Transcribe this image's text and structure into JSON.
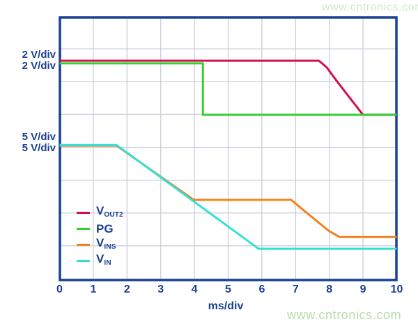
{
  "page": {
    "watermark_top": "www.cntronics.com",
    "watermark_bottom": "www.cntronics.com"
  },
  "axis": {
    "xlabel": "ms/div",
    "tick_labels": [
      "0",
      "1",
      "2",
      "3",
      "4",
      "5",
      "6",
      "7",
      "8",
      "9",
      "10"
    ]
  },
  "scale_labels": {
    "group_top": [
      "2 V/div",
      "2 V/div"
    ],
    "group_mid": [
      "5 V/div",
      "5 V/div"
    ]
  },
  "legend": [
    {
      "id": "vout2",
      "main": "V",
      "sub": "OUT2",
      "color": "#d2104a"
    },
    {
      "id": "pg",
      "main": "PG",
      "sub": "",
      "color": "#33cf33"
    },
    {
      "id": "vins",
      "main": "V",
      "sub": "INS",
      "color": "#f0831f"
    },
    {
      "id": "vin",
      "main": "V",
      "sub": "IN",
      "color": "#33e0d4"
    }
  ],
  "colors": {
    "axis_text": "#1a3f94",
    "plot_border": "#1a3f94",
    "grid": "#c9cedb",
    "background": "#ffffff",
    "watermark": "#b5dcab"
  },
  "chart_data": {
    "type": "line",
    "title": "",
    "xlabel": "ms/div",
    "ylabel": "",
    "x_range": [
      0,
      10
    ],
    "x_ticks": [
      0,
      1,
      2,
      3,
      4,
      5,
      6,
      7,
      8,
      9,
      10
    ],
    "y_divisions": 8,
    "grid": true,
    "legend_position": "inside lower-left",
    "note": "y values are in vertical grid divisions above the bottom axis; V_OUT2 and PG are displayed at 2 V/div, V_INS and V_IN at 5 V/div",
    "series": [
      {
        "name": "V_OUT2",
        "scale": "2 V/div",
        "color": "#d2104a",
        "points": [
          [
            0,
            6.64
          ],
          [
            7.69,
            6.64
          ],
          [
            7.92,
            6.44
          ],
          [
            8.25,
            5.98
          ],
          [
            8.72,
            5.36
          ],
          [
            9.0,
            4.99
          ],
          [
            10,
            4.99
          ]
        ]
      },
      {
        "name": "PG",
        "scale": "2 V/div",
        "color": "#33cf33",
        "points": [
          [
            0,
            6.56
          ],
          [
            4.25,
            6.56
          ],
          [
            4.25,
            4.99
          ],
          [
            10,
            4.99
          ]
        ]
      },
      {
        "name": "V_INS",
        "scale": "5 V/div",
        "color": "#f0831f",
        "points": [
          [
            0,
            4.05
          ],
          [
            1.69,
            4.05
          ],
          [
            3.98,
            2.4
          ],
          [
            6.87,
            2.4
          ],
          [
            7.3,
            2.03
          ],
          [
            7.98,
            1.46
          ],
          [
            8.3,
            1.27
          ],
          [
            10,
            1.27
          ]
        ]
      },
      {
        "name": "V_IN",
        "scale": "5 V/div",
        "color": "#33e0d4",
        "points": [
          [
            0,
            4.07
          ],
          [
            1.69,
            4.07
          ],
          [
            5.9,
            0.91
          ],
          [
            10,
            0.91
          ]
        ]
      }
    ]
  }
}
